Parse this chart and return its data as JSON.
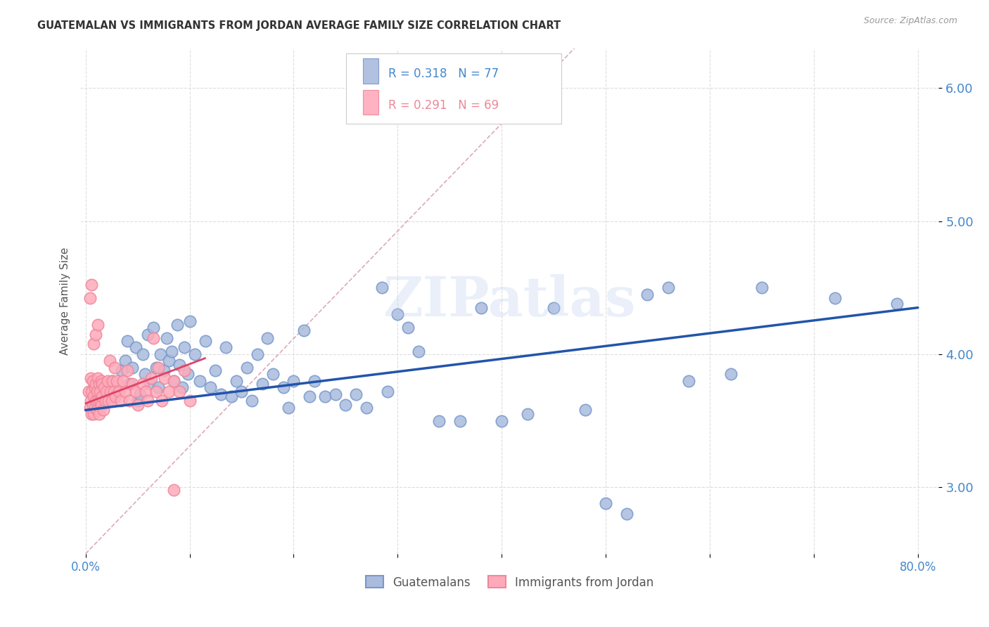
{
  "title": "GUATEMALAN VS IMMIGRANTS FROM JORDAN AVERAGE FAMILY SIZE CORRELATION CHART",
  "source": "Source: ZipAtlas.com",
  "ylabel": "Average Family Size",
  "watermark": "ZIPatlas",
  "xlim": [
    -0.005,
    0.82
  ],
  "ylim": [
    2.5,
    6.3
  ],
  "yticks": [
    3.0,
    4.0,
    5.0,
    6.0
  ],
  "xticks": [
    0.0,
    0.1,
    0.2,
    0.3,
    0.4,
    0.5,
    0.6,
    0.7,
    0.8
  ],
  "xtick_labels": [
    "0.0%",
    "",
    "",
    "",
    "",
    "",
    "",
    "",
    "80.0%"
  ],
  "blue_color": "#aabbdd",
  "blue_edge_color": "#7799cc",
  "pink_color": "#ffaabb",
  "pink_edge_color": "#ee8899",
  "line_blue_color": "#2255aa",
  "line_pink_color": "#dd4466",
  "diag_color": "#ddaabb",
  "grid_color": "#dddddd",
  "axis_tick_color": "#4488cc",
  "title_color": "#333333",
  "legend_R_blue": "R = 0.318",
  "legend_N_blue": "N = 77",
  "legend_R_pink": "R = 0.291",
  "legend_N_pink": "N = 69",
  "blue_line_x": [
    0.0,
    0.8
  ],
  "blue_line_y": [
    3.58,
    4.35
  ],
  "pink_line_x": [
    0.0,
    0.115
  ],
  "pink_line_y": [
    3.63,
    3.97
  ],
  "diag_line_x": [
    0.0,
    0.47
  ],
  "diag_line_y": [
    2.5,
    6.3
  ],
  "blue_x": [
    0.025,
    0.03,
    0.035,
    0.038,
    0.04,
    0.042,
    0.045,
    0.048,
    0.05,
    0.052,
    0.055,
    0.057,
    0.06,
    0.062,
    0.065,
    0.068,
    0.07,
    0.072,
    0.075,
    0.078,
    0.08,
    0.083,
    0.085,
    0.088,
    0.09,
    0.093,
    0.095,
    0.098,
    0.1,
    0.105,
    0.11,
    0.115,
    0.12,
    0.125,
    0.13,
    0.135,
    0.14,
    0.145,
    0.15,
    0.155,
    0.16,
    0.165,
    0.17,
    0.175,
    0.18,
    0.19,
    0.195,
    0.2,
    0.21,
    0.215,
    0.22,
    0.23,
    0.24,
    0.25,
    0.26,
    0.27,
    0.285,
    0.29,
    0.3,
    0.31,
    0.32,
    0.34,
    0.36,
    0.38,
    0.4,
    0.425,
    0.45,
    0.48,
    0.5,
    0.52,
    0.54,
    0.56,
    0.58,
    0.62,
    0.65,
    0.72,
    0.78
  ],
  "blue_y": [
    3.8,
    3.72,
    3.88,
    3.95,
    4.1,
    3.78,
    3.9,
    4.05,
    3.65,
    3.7,
    4.0,
    3.85,
    4.15,
    3.78,
    4.2,
    3.9,
    3.75,
    4.0,
    3.88,
    4.12,
    3.95,
    4.02,
    3.8,
    4.22,
    3.92,
    3.75,
    4.05,
    3.85,
    4.25,
    4.0,
    3.8,
    4.1,
    3.75,
    3.88,
    3.7,
    4.05,
    3.68,
    3.8,
    3.72,
    3.9,
    3.65,
    4.0,
    3.78,
    4.12,
    3.85,
    3.75,
    3.6,
    3.8,
    4.18,
    3.68,
    3.8,
    3.68,
    3.7,
    3.62,
    3.7,
    3.6,
    4.5,
    3.72,
    4.3,
    4.2,
    4.02,
    3.5,
    3.5,
    4.35,
    3.5,
    3.55,
    4.35,
    3.58,
    2.88,
    2.8,
    4.45,
    4.5,
    3.8,
    3.85,
    4.5,
    4.42,
    4.38
  ],
  "pink_x": [
    0.003,
    0.004,
    0.005,
    0.005,
    0.006,
    0.006,
    0.007,
    0.007,
    0.008,
    0.008,
    0.009,
    0.009,
    0.01,
    0.01,
    0.011,
    0.011,
    0.012,
    0.012,
    0.013,
    0.013,
    0.014,
    0.014,
    0.015,
    0.015,
    0.016,
    0.016,
    0.017,
    0.018,
    0.019,
    0.02,
    0.021,
    0.022,
    0.023,
    0.024,
    0.025,
    0.026,
    0.027,
    0.028,
    0.029,
    0.03,
    0.032,
    0.034,
    0.036,
    0.038,
    0.04,
    0.042,
    0.045,
    0.048,
    0.05,
    0.055,
    0.058,
    0.06,
    0.063,
    0.065,
    0.068,
    0.07,
    0.073,
    0.076,
    0.08,
    0.085,
    0.09,
    0.095,
    0.1,
    0.004,
    0.006,
    0.008,
    0.01,
    0.012,
    0.085
  ],
  "pink_y": [
    3.72,
    3.6,
    3.82,
    3.65,
    3.55,
    3.72,
    3.62,
    3.8,
    3.68,
    3.55,
    3.75,
    3.6,
    3.78,
    3.65,
    3.72,
    3.58,
    3.82,
    3.65,
    3.55,
    3.78,
    3.65,
    3.72,
    3.8,
    3.62,
    3.78,
    3.68,
    3.58,
    3.75,
    3.65,
    3.72,
    3.8,
    3.65,
    3.95,
    3.72,
    3.65,
    3.8,
    3.72,
    3.9,
    3.68,
    3.8,
    3.72,
    3.65,
    3.8,
    3.72,
    3.88,
    3.65,
    3.78,
    3.72,
    3.62,
    3.78,
    3.72,
    3.65,
    3.82,
    4.12,
    3.72,
    3.9,
    3.65,
    3.82,
    3.72,
    3.8,
    3.72,
    3.88,
    3.65,
    4.42,
    4.52,
    4.08,
    4.15,
    4.22,
    2.98
  ]
}
